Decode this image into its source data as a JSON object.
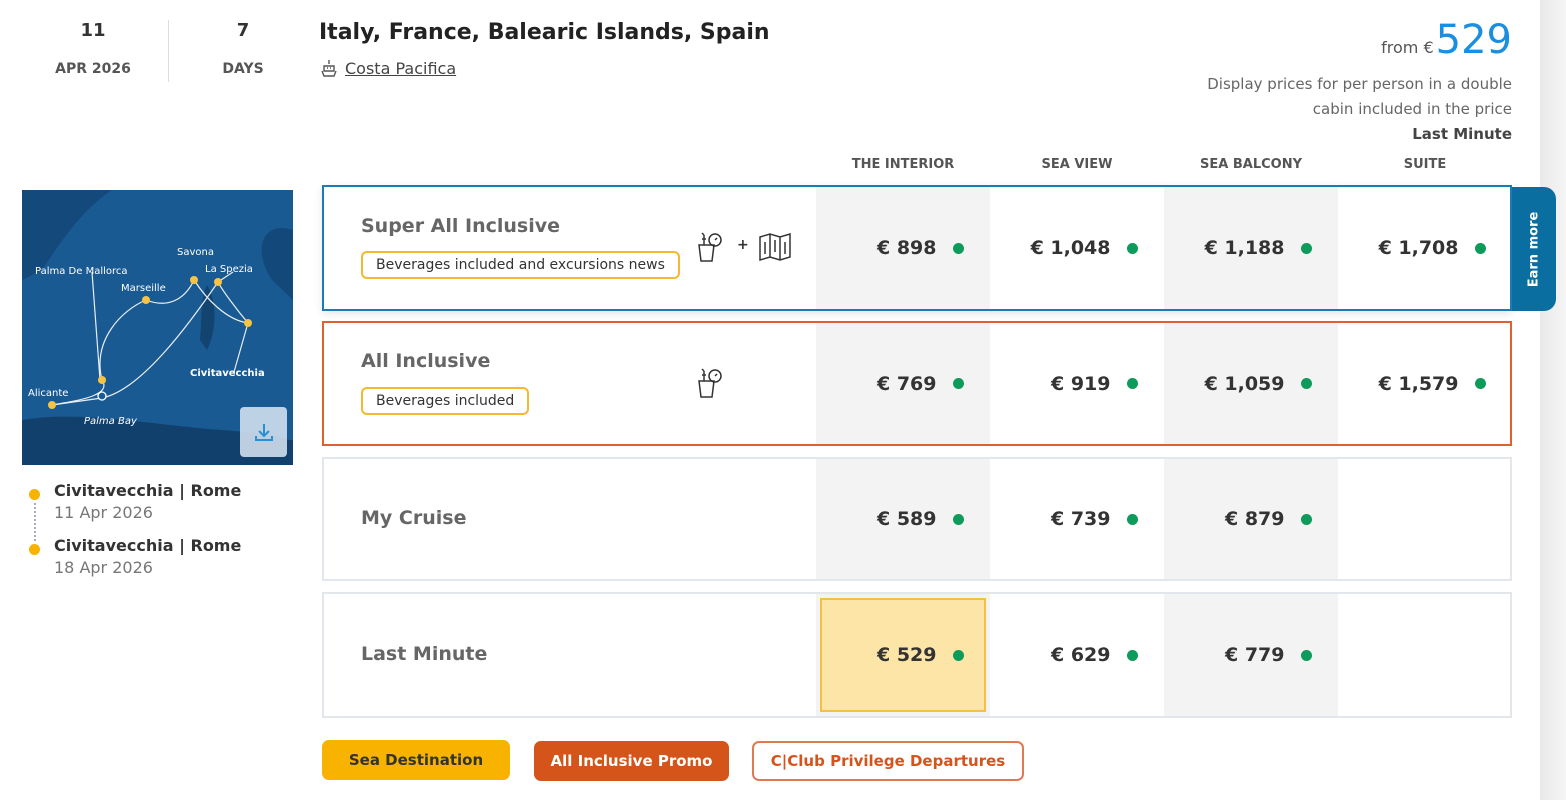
{
  "departure": {
    "day": "11",
    "month_year": "APR 2026"
  },
  "duration": {
    "value": "7",
    "unit": "DAYS"
  },
  "cruise": {
    "title": "Italy, France, Balearic Islands, Spain",
    "ship": "Costa Pacifica"
  },
  "price_summary": {
    "from_label": "from €",
    "from_value": "529",
    "note": "Display prices for per person in a double cabin included in the price",
    "fare": "Last Minute"
  },
  "map": {
    "labels": [
      "Savona",
      "Palma De Mallorca",
      "La Spezia",
      "Marseille",
      "Civitavecchia",
      "Alicante",
      "Palma Bay"
    ],
    "download_icon": "download-icon"
  },
  "itinerary": [
    {
      "port": "Civitavecchia | Rome",
      "date": "11 Apr 2026"
    },
    {
      "port": "Civitavecchia | Rome",
      "date": "18 Apr 2026"
    }
  ],
  "columns": [
    "THE INTERIOR",
    "SEA VIEW",
    "SEA BALCONY",
    "SUITE"
  ],
  "fares": [
    {
      "name": "Super All Inclusive",
      "badge": "Beverages included and excursions news",
      "icons": [
        "drinks-icon",
        "plus",
        "map-icon"
      ],
      "prices": [
        "€ 898",
        "€ 1,048",
        "€ 1,188",
        "€ 1,708"
      ]
    },
    {
      "name": "All Inclusive",
      "badge": "Beverages included",
      "icons": [
        "drinks-icon"
      ],
      "prices": [
        "€ 769",
        "€ 919",
        "€ 1,059",
        "€ 1,579"
      ]
    },
    {
      "name": "My Cruise",
      "prices": [
        "€ 589",
        "€ 739",
        "€ 879",
        ""
      ]
    },
    {
      "name": "Last Minute",
      "prices": [
        "€ 529",
        "€ 629",
        "€ 779",
        ""
      ],
      "selected": 0
    }
  ],
  "earn_more": "Earn more",
  "plus_sign": "+",
  "tags": [
    "Sea Destination",
    "All Inclusive Promo",
    "C|Club Privilege Departures"
  ],
  "colors": {
    "accent": "#1a8fe0",
    "super_border": "#1b7bb8",
    "all_inclusive_border": "#e06030",
    "badge_border": "#f5b82e",
    "available": "#0c9b5a",
    "selected_bg": "#fde5a8",
    "earn": "#0a6fa0"
  }
}
